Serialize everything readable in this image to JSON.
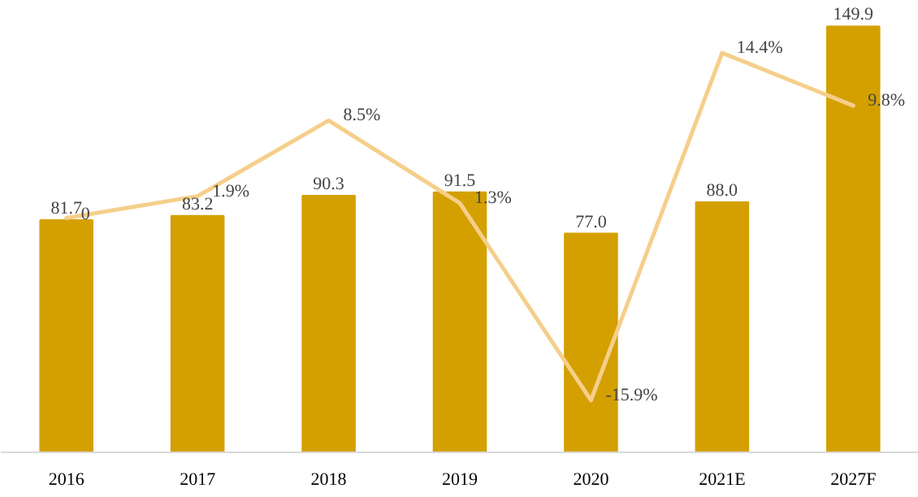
{
  "chart_data": {
    "type": "bar",
    "categories": [
      "2016",
      "2017",
      "2018",
      "2019",
      "2020",
      "2021E",
      "2027F"
    ],
    "series": [
      {
        "color": "#d4a000",
        "values": [
          81.7,
          83.2,
          90.3,
          91.5,
          77.0,
          88.0,
          149.9
        ],
        "value_labels": [
          "81.7",
          "83.2",
          "90.3",
          "91.5",
          "77.0",
          "88.0",
          "149.9"
        ]
      },
      {
        "type": "line",
        "axis": "y2",
        "color": "#f5cf8a",
        "values": [
          0,
          1.9,
          8.5,
          1.3,
          -15.9,
          14.4,
          9.8
        ],
        "value_labels": [
          "0",
          "1.9%",
          "8.5%",
          "1.3%",
          "-15.9%",
          "14.4%",
          "9.8%"
        ]
      }
    ],
    "tick_labels": "x",
    "grid": false,
    "marker": "none",
    "line_style": "solid"
  }
}
